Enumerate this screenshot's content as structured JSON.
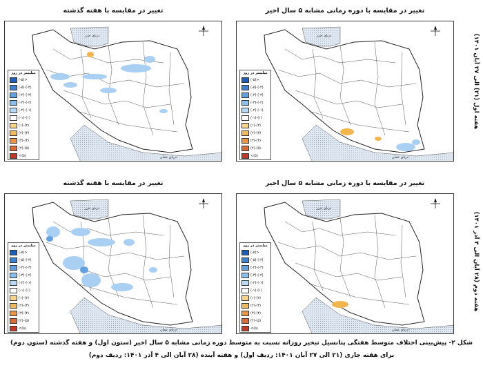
{
  "row_labels": {
    "week1": "هفته اول (۲۱) الی ۲۷ آبان ۱۴۰۱)",
    "week2": "هفته دوم (۲۸ آبان الی ۴ آذر ۱۴۰۱)"
  },
  "panels": {
    "top_right": {
      "title": "تغییر در مقایسه با دوره زمانی مشابه ۵ سال اخیر"
    },
    "top_left": {
      "title": "تغییر در مقایسه با هفته گذشته"
    },
    "bottom_right": {
      "title": "تغییر در مقایسه با دوره زمانی مشابه ۵ سال اخیر"
    },
    "bottom_left": {
      "title": "تغییر در مقایسه با هفته گذشته"
    }
  },
  "map_labels": {
    "caspian": "دریای خزر",
    "oman": "دریای عمان"
  },
  "legend": {
    "title": "میلیمتر در روز",
    "items": [
      {
        "label": "(-۵)>",
        "color": "#1f5fb8"
      },
      {
        "label": "(-۵)-(-۴)",
        "color": "#3f80d0"
      },
      {
        "label": "(-۴)-(-۳)",
        "color": "#63a0e0"
      },
      {
        "label": "(-۳)-(-۲)",
        "color": "#8cbfee"
      },
      {
        "label": "(-۲)-(-۱)",
        "color": "#b9daf6"
      },
      {
        "label": "(-۱)-(۱)",
        "color": "#ffffff"
      },
      {
        "label": "(۱)-(۲)",
        "color": "#f6d58a"
      },
      {
        "label": "(۲)-(۳)",
        "color": "#f0b860"
      },
      {
        "label": "(۳)-(۴)",
        "color": "#e8954a"
      },
      {
        "label": "(۴)-(۵)",
        "color": "#d86a3a"
      },
      {
        "label": "<(۵)",
        "color": "#c0392b"
      }
    ]
  },
  "caption": {
    "line1": "شکل ۲- پیش‌بینی اختلاف متوسط هفتگی پتانسیل تبخیر روزانه نسبت به متوسط دوره زمانی مشابه ۵ سال اخیر (ستون اول) و هفته گذشته (ستون دوم)",
    "line2": "برای هفته جاری (۲۱ الی ۲۷ آبان ۱۴۰۱: ردیف اول) و هفته آینده (۲۸ آبان الی ۴ آذر ۱۴۰۱: ردیف دوم)"
  },
  "colors": {
    "sea": "#c9d6e6",
    "blue_anomaly": "#a9cff3",
    "orange_anomaly": "#f2b54e",
    "border": "#333333"
  }
}
